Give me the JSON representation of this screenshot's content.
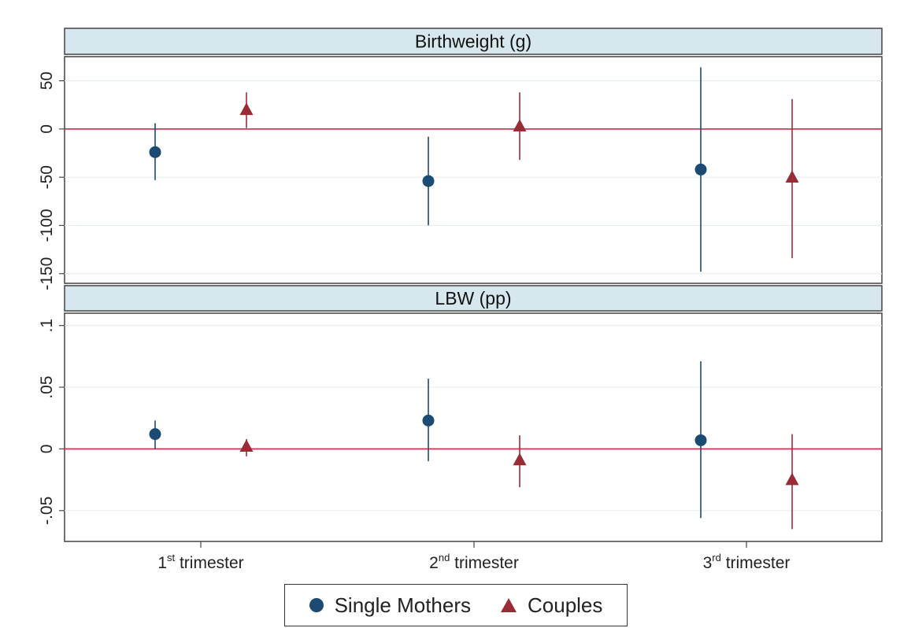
{
  "chart_data": {
    "type": "scatter",
    "categories": [
      {
        "base": "1",
        "sup": "st",
        "rest": " trimester"
      },
      {
        "base": "2",
        "sup": "nd",
        "rest": " trimester"
      },
      {
        "base": "3",
        "sup": "rd",
        "rest": " trimester"
      }
    ],
    "legend": {
      "position": "bottom"
    },
    "grid": true,
    "reference_line": {
      "y": 0,
      "color": "#c0304a"
    },
    "panels": [
      {
        "title": "Birthweight (g)",
        "ylim": [
          -160,
          75
        ],
        "yticks": [
          50,
          0,
          -50,
          -100,
          -150
        ],
        "ytick_labels": [
          "50",
          "0",
          "-50",
          "-100",
          "-150"
        ],
        "series": [
          {
            "name": "Single Mothers",
            "marker": "circle",
            "color": "#1b4a73",
            "points": [
              {
                "y": -24,
                "lo": -53,
                "hi": 6
              },
              {
                "y": -54,
                "lo": -100,
                "hi": -8
              },
              {
                "y": -42,
                "lo": -148,
                "hi": 64
              }
            ]
          },
          {
            "name": "Couples",
            "marker": "triangle",
            "color": "#9b2b35",
            "points": [
              {
                "y": 20,
                "lo": 1,
                "hi": 38
              },
              {
                "y": 3,
                "lo": -32,
                "hi": 38
              },
              {
                "y": -50,
                "lo": -134,
                "hi": 31
              }
            ]
          }
        ]
      },
      {
        "title": "LBW (pp)",
        "ylim": [
          -0.075,
          0.11
        ],
        "yticks": [
          0.1,
          0.05,
          0,
          -0.05
        ],
        "ytick_labels": [
          ".1",
          ".05",
          "0",
          "-.05"
        ],
        "series": [
          {
            "name": "Single Mothers",
            "marker": "circle",
            "color": "#1b4a73",
            "points": [
              {
                "y": 0.012,
                "lo": 0.0,
                "hi": 0.023
              },
              {
                "y": 0.023,
                "lo": -0.01,
                "hi": 0.057
              },
              {
                "y": 0.007,
                "lo": -0.056,
                "hi": 0.071
              }
            ]
          },
          {
            "name": "Couples",
            "marker": "triangle",
            "color": "#9b2b35",
            "points": [
              {
                "y": 0.002,
                "lo": -0.006,
                "hi": 0.008
              },
              {
                "y": -0.009,
                "lo": -0.031,
                "hi": 0.011
              },
              {
                "y": -0.025,
                "lo": -0.065,
                "hi": 0.012
              }
            ]
          }
        ]
      }
    ]
  }
}
